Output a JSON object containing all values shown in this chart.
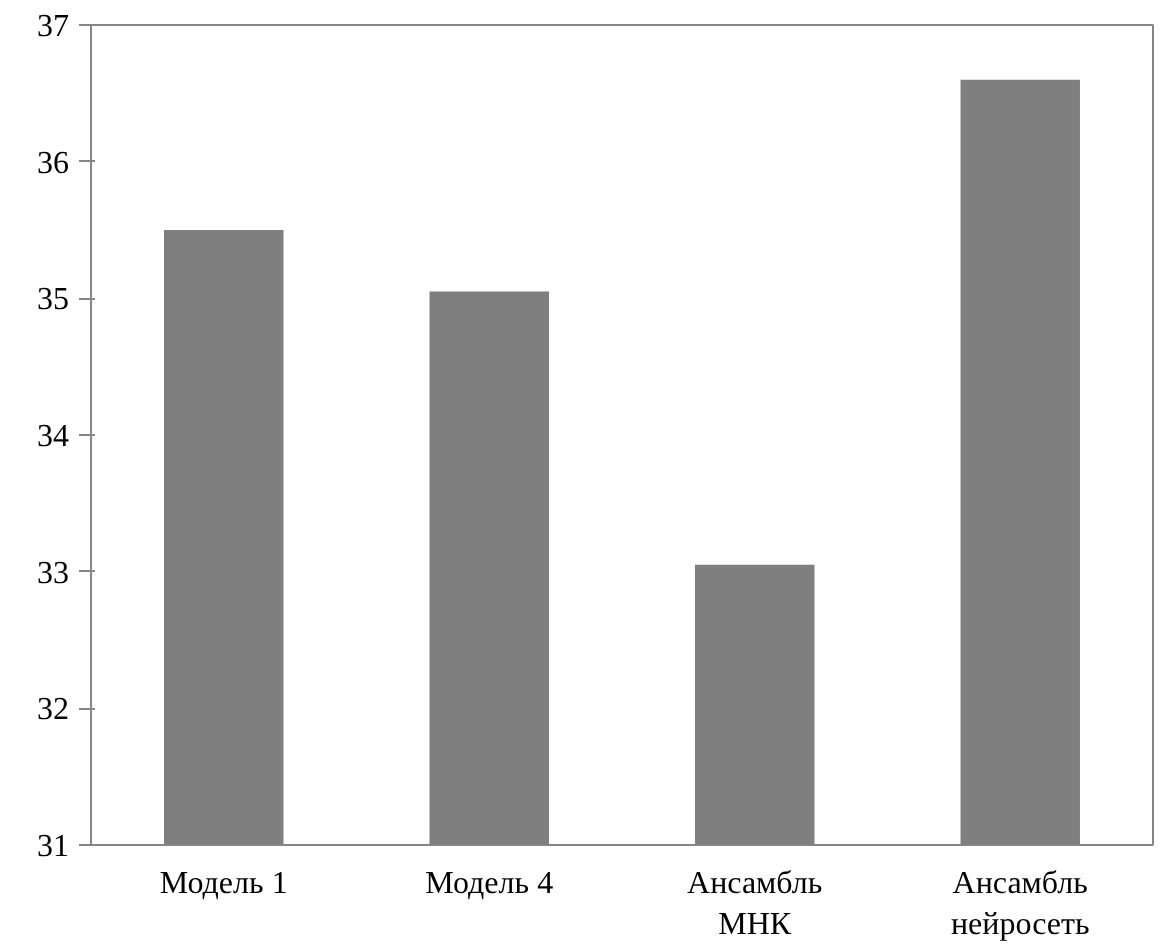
{
  "chart_data": {
    "type": "bar",
    "categories": [
      "Модель 1",
      "Модель 4",
      "Ансамбль\nМНК",
      "Ансамбль\nнейросеть"
    ],
    "values": [
      35.5,
      35.05,
      33.05,
      36.6
    ],
    "color": "#7f7f7f",
    "ylim": [
      31,
      37
    ],
    "yticks": [
      31,
      32,
      33,
      34,
      35,
      36,
      37
    ],
    "grid": false
  }
}
